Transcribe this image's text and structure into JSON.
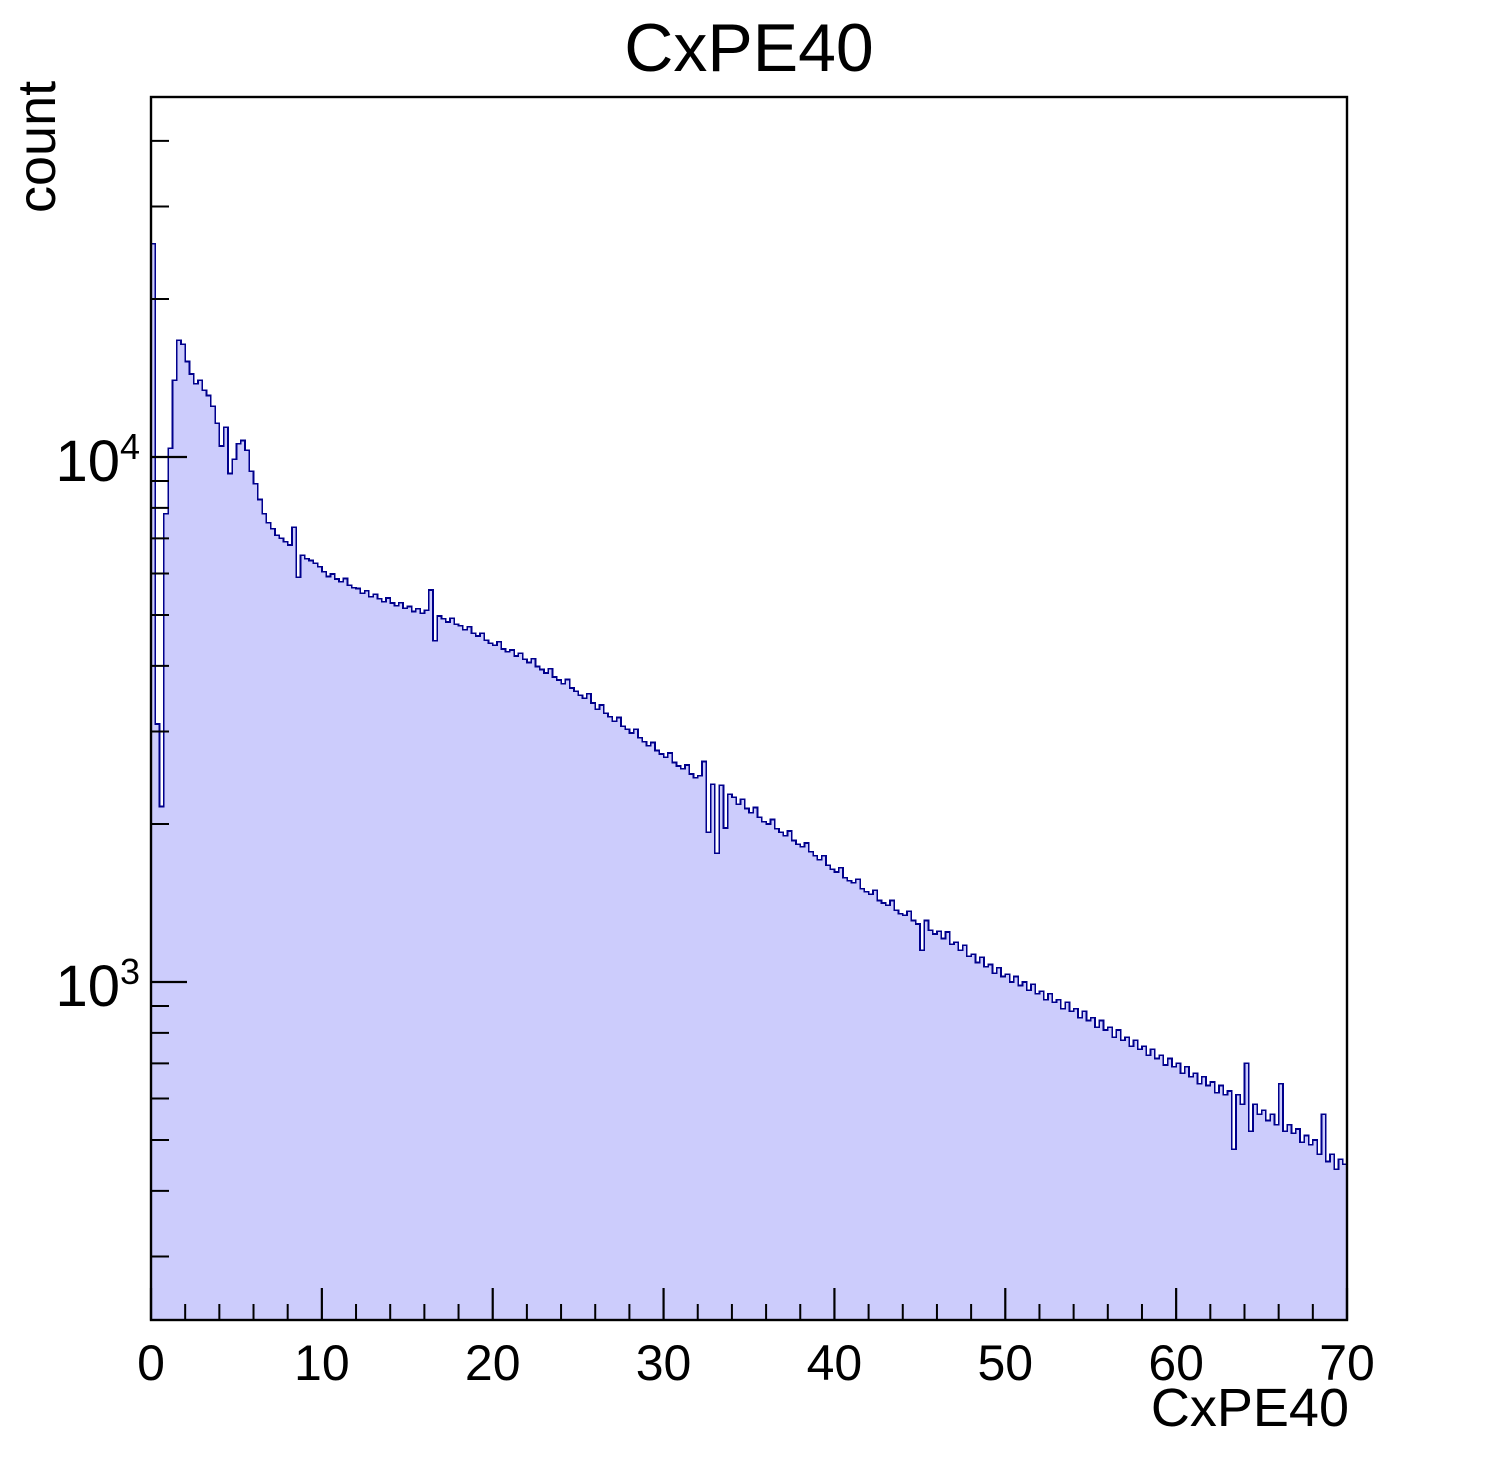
{
  "title": "CxPE40",
  "x_axis": {
    "title": "CxPE40",
    "min": 0,
    "max": 70,
    "major_ticks": [
      0,
      10,
      20,
      30,
      40,
      50,
      60,
      70
    ],
    "minor_tick_step": 2
  },
  "y_axis": {
    "title": "count",
    "scale": "log",
    "min": 225,
    "max": 48000,
    "major_ticks": [
      {
        "value": 1000,
        "base": "10",
        "exponent": "3"
      },
      {
        "value": 10000,
        "base": "10",
        "exponent": "4"
      }
    ],
    "minor_ticks": [
      300,
      400,
      500,
      600,
      700,
      800,
      900,
      2000,
      3000,
      4000,
      5000,
      6000,
      7000,
      8000,
      9000,
      20000,
      30000,
      40000
    ]
  },
  "colors": {
    "histogram_fill": "#ccccfc",
    "histogram_line": "#00008c",
    "frame": "#000000",
    "background": "#ffffff",
    "text": "#000000"
  },
  "chart_data": {
    "type": "bar",
    "subtype": "histogram",
    "title": "CxPE40",
    "xlabel": "CxPE40",
    "ylabel": "count",
    "yscale": "log",
    "xlim": [
      0,
      70
    ],
    "ylim": [
      225,
      48000
    ],
    "grid": false,
    "legend": false,
    "bin_start": 0,
    "bin_width": 0.25,
    "values": [
      25500,
      3100,
      2160,
      7800,
      10400,
      14000,
      16700,
      16400,
      15200,
      14400,
      13800,
      14000,
      13400,
      13100,
      12500,
      11600,
      10500,
      11400,
      9300,
      9900,
      10600,
      10750,
      10300,
      9400,
      8900,
      8300,
      7800,
      7500,
      7300,
      7100,
      7000,
      6900,
      6800,
      7350,
      5900,
      6500,
      6400,
      6350,
      6280,
      6180,
      6050,
      5920,
      5990,
      5860,
      5790,
      5870,
      5700,
      5640,
      5620,
      5500,
      5560,
      5420,
      5480,
      5370,
      5300,
      5390,
      5270,
      5210,
      5280,
      5150,
      5190,
      5080,
      5140,
      5040,
      5110,
      5580,
      4470,
      4980,
      4920,
      4850,
      4930,
      4800,
      4770,
      4690,
      4750,
      4620,
      4560,
      4620,
      4480,
      4420,
      4380,
      4450,
      4310,
      4260,
      4290,
      4180,
      4230,
      4120,
      4060,
      4130,
      3990,
      3940,
      3880,
      3950,
      3810,
      3760,
      3700,
      3770,
      3630,
      3580,
      3520,
      3470,
      3540,
      3400,
      3310,
      3370,
      3250,
      3200,
      3140,
      3190,
      3070,
      3030,
      2980,
      3030,
      2920,
      2870,
      2820,
      2860,
      2760,
      2720,
      2680,
      2730,
      2620,
      2580,
      2550,
      2590,
      2490,
      2450,
      2470,
      2630,
      1930,
      2380,
      1760,
      2370,
      1965,
      2280,
      2250,
      2180,
      2230,
      2140,
      2100,
      2150,
      2060,
      2020,
      2000,
      2040,
      1960,
      1930,
      1900,
      1940,
      1860,
      1830,
      1810,
      1840,
      1770,
      1740,
      1710,
      1740,
      1670,
      1640,
      1620,
      1650,
      1580,
      1560,
      1545,
      1570,
      1505,
      1485,
      1470,
      1495,
      1430,
      1415,
      1400,
      1430,
      1370,
      1350,
      1340,
      1365,
      1310,
      1290,
      1150,
      1310,
      1255,
      1235,
      1250,
      1210,
      1245,
      1180,
      1190,
      1150,
      1175,
      1120,
      1130,
      1090,
      1115,
      1070,
      1080,
      1040,
      1065,
      1025,
      1035,
      1000,
      1025,
      985,
      1000,
      965,
      990,
      950,
      960,
      925,
      950,
      915,
      925,
      890,
      915,
      880,
      890,
      855,
      880,
      845,
      855,
      820,
      845,
      810,
      820,
      785,
      810,
      775,
      785,
      755,
      775,
      745,
      755,
      725,
      745,
      715,
      725,
      695,
      715,
      690,
      700,
      670,
      690,
      660,
      670,
      640,
      660,
      635,
      645,
      615,
      635,
      610,
      620,
      480,
      610,
      585,
      700,
      520,
      585,
      560,
      570,
      545,
      560,
      535,
      640,
      520,
      535,
      515,
      525,
      495,
      510,
      490,
      500,
      470,
      560,
      455,
      470,
      440,
      460,
      450
    ]
  }
}
